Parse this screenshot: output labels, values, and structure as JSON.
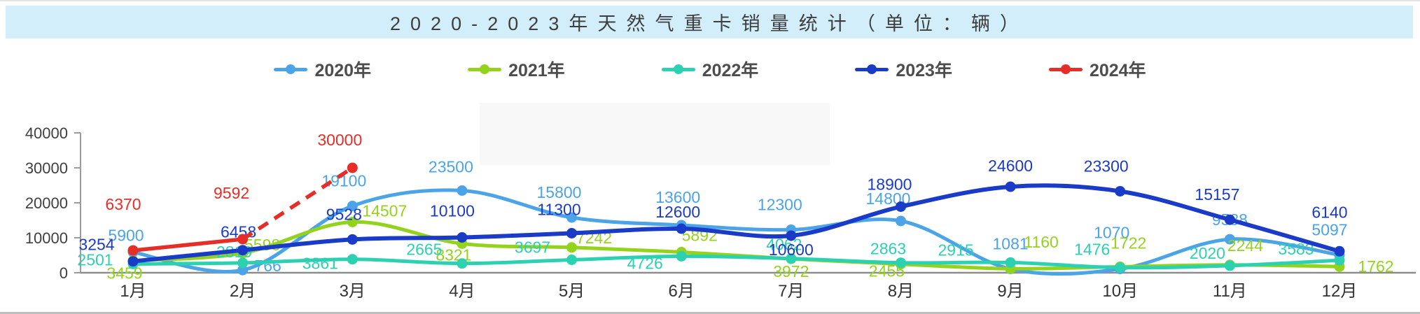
{
  "title_bar": {
    "title": "2020-2023年天然气重卡销量统计（单位：辆）"
  },
  "legend": {
    "items": [
      {
        "label": "2020年",
        "color": "#4BA3E8"
      },
      {
        "label": "2021年",
        "color": "#93D31C"
      },
      {
        "label": "2022年",
        "color": "#2BD1B0"
      },
      {
        "label": "2023年",
        "color": "#1A3BC8"
      },
      {
        "label": "2024年",
        "color": "#E62E28"
      }
    ]
  },
  "chart_data": {
    "type": "line",
    "title": "2020-2023年天然气重卡销量统计（单位：辆）",
    "categories": [
      "1月",
      "2月",
      "3月",
      "4月",
      "5月",
      "6月",
      "7月",
      "8月",
      "9月",
      "10月",
      "11月",
      "12月"
    ],
    "series": [
      {
        "name": "2020年",
        "color": "#4BA3E8",
        "style": "solid",
        "values": [
          5900,
          766,
          19100,
          23500,
          15800,
          13600,
          12300,
          14800,
          1081,
          1070,
          9588,
          5097
        ]
      },
      {
        "name": "2021年",
        "color": "#93D31C",
        "style": "solid",
        "values": [
          3459,
          5598,
          14507,
          8321,
          7242,
          5892,
          3972,
          2455,
          1160,
          1722,
          2244,
          1762
        ]
      },
      {
        "name": "2022年",
        "color": "#2BD1B0",
        "style": "solid",
        "values": [
          2501,
          2819,
          3861,
          2665,
          3697,
          4726,
          4062,
          2863,
          2915,
          1476,
          2020,
          3583
        ]
      },
      {
        "name": "2023年",
        "color": "#1A3BC8",
        "style": "solid",
        "values": [
          3254,
          6458,
          9528,
          10100,
          11300,
          12600,
          10600,
          18900,
          24600,
          23300,
          15157,
          6140
        ]
      },
      {
        "name": "2024年",
        "color": "#E62E28",
        "style": "dashed-after-first-segment",
        "values": [
          6370,
          9592,
          30000
        ]
      }
    ],
    "xlabel": "",
    "ylabel": "",
    "ylim": [
      0,
      40000
    ],
    "yticks": [
      0,
      10000,
      20000,
      30000,
      40000
    ],
    "grid": false,
    "legend_position": "top",
    "smooth_lines": true
  }
}
